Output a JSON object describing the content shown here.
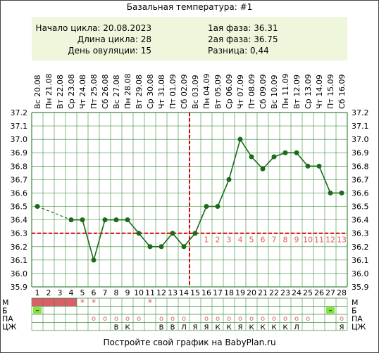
{
  "title": "Базальная температура: #1",
  "info": {
    "cycle_start": "Начало цикла: 20.08.2023",
    "cycle_length": "Длина цикла: 28",
    "ovulation_day": "День овуляции: 15",
    "phase1": "1ая фаза: 36.31",
    "phase2": "2ая фаза: 36.75",
    "difference": "Разница: 0,44"
  },
  "footer": "Постройте свой график на BabyPlan.ru",
  "colors": {
    "line": "#1a6b1a",
    "grid": "#3a8a3a",
    "coverline": "#e00000",
    "row_red": "#d9606a",
    "row_green": "#84e23a",
    "panel": "#eef7dc"
  },
  "chart_data": {
    "type": "line",
    "title": "Базальная температура: #1",
    "x": [
      1,
      2,
      3,
      4,
      5,
      6,
      7,
      8,
      9,
      10,
      11,
      12,
      13,
      14,
      15,
      16,
      17,
      18,
      19,
      20,
      21,
      22,
      23,
      24,
      25,
      26,
      27,
      28
    ],
    "weekdays": [
      "Вс",
      "Пн",
      "Вт",
      "Ср",
      "Чт",
      "Пт",
      "Сб",
      "Вс",
      "Пн",
      "Вт",
      "Ср",
      "Чт",
      "Пт",
      "Сб",
      "Вс",
      "Пн",
      "Вт",
      "Ср",
      "Чт",
      "Пт",
      "Сб",
      "Вс",
      "Пн",
      "Вт",
      "Ср",
      "Чт",
      "Пт",
      "Сб"
    ],
    "dates": [
      "20.08",
      "21.08",
      "22.08",
      "23.08",
      "24.08",
      "25.08",
      "26.08",
      "27.08",
      "28.08",
      "29.08",
      "30.08",
      "31.08",
      "01.09",
      "02.09",
      "03.09",
      "04.09",
      "05.09",
      "06.09",
      "07.09",
      "08.09",
      "09.09",
      "10.09",
      "11.09",
      "12.09",
      "13.09",
      "14.09",
      "15.09",
      "16.09"
    ],
    "temperatures": [
      36.5,
      null,
      null,
      36.4,
      36.4,
      36.1,
      36.4,
      36.4,
      36.4,
      36.3,
      36.2,
      36.2,
      36.3,
      36.2,
      36.3,
      36.5,
      36.5,
      36.7,
      37.0,
      36.87,
      36.78,
      36.87,
      36.9,
      36.9,
      36.8,
      36.8,
      36.6,
      36.6
    ],
    "dashed_segment": [
      1,
      4
    ],
    "ylim": [
      35.9,
      37.2
    ],
    "yticks": [
      "35.9",
      "36.0",
      "36.1",
      "36.2",
      "36.3",
      "36.4",
      "36.5",
      "36.6",
      "36.7",
      "36.8",
      "36.9",
      "37.0",
      "37.1",
      "37.2"
    ],
    "coverline": 36.3,
    "ovulation_day": 15,
    "luteal_labels": [
      "1",
      "2",
      "3",
      "4",
      "5",
      "6",
      "7",
      "8",
      "9",
      "10",
      "11",
      "12",
      "13"
    ],
    "grid": true,
    "rows": {
      "labels": [
        "М",
        "Б",
        "ПА",
        "ЦЖ"
      ],
      "M": {
        "red_days": [
          1,
          2,
          3,
          4
        ],
        "stars": [
          5,
          6,
          11
        ],
        "star_symbol": "*"
      },
      "B": {
        "green_days": [
          1,
          27
        ],
        "symbol": "–"
      },
      "PA": {
        "days": [
          6,
          7,
          8,
          9,
          10,
          12,
          13,
          14,
          16,
          17,
          18,
          19,
          20,
          21,
          22,
          23,
          24,
          25,
          28
        ],
        "symbol": "о"
      },
      "CJ": [
        null,
        null,
        null,
        null,
        null,
        null,
        null,
        "В",
        "К",
        null,
        null,
        "В",
        "В",
        "Л",
        "Я",
        "Я",
        "К",
        "К",
        "Я",
        "К",
        "К",
        "К",
        "К",
        "Л",
        null,
        null,
        null,
        "Я"
      ]
    }
  }
}
